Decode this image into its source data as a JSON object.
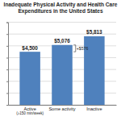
{
  "chart_data": {
    "type": "bar",
    "title": "Inadequate Physical Activity and Health Care Expenditures in the United States",
    "categories": [
      "Active (≥150 min/week)",
      "Some activity",
      "Inactive"
    ],
    "values": [
      4500,
      5076,
      5813
    ],
    "value_labels": [
      "$4,500",
      "$5,076",
      "$5,813"
    ],
    "color": "#4f81bd",
    "ylim": [
      0,
      7000
    ],
    "yticks": [
      0,
      1000,
      2000,
      3000,
      4000,
      5000,
      6000,
      7000
    ],
    "grid": true,
    "data_labels": true,
    "tick_labels": "x",
    "annotations": [
      {
        "text": "+$576",
        "from": 4500,
        "to": 5076
      }
    ]
  }
}
